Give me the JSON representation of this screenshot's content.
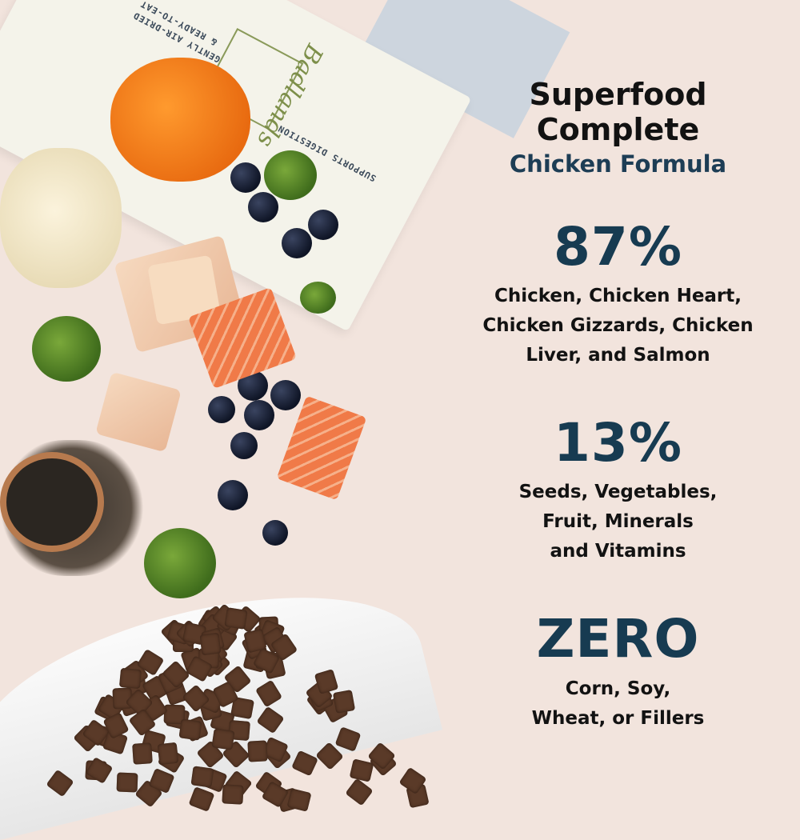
{
  "bag": {
    "lines": [
      "GENTLY AIR-DRIED",
      "& READY-TO-EAT",
      "SUPPORTS DIGESTION"
    ],
    "brand": "Badlands"
  },
  "header": {
    "title_line1": "Superfood",
    "title_line2": "Complete",
    "subtitle": "Chicken Formula"
  },
  "stats": [
    {
      "value": "87%",
      "lines": [
        "Chicken, Chicken Heart,",
        "Chicken Gizzards, Chicken",
        "Liver, and Salmon"
      ]
    },
    {
      "value": "13%",
      "lines": [
        "Seeds, Vegetables,",
        "Fruit, Minerals",
        "and Vitamins"
      ]
    },
    {
      "value": "ZERO",
      "lines": [
        "Corn, Soy,",
        "Wheat, or Fillers"
      ]
    }
  ],
  "colors": {
    "background": "#f2e4dd",
    "heading": "#121212",
    "accent": "#173b51"
  }
}
